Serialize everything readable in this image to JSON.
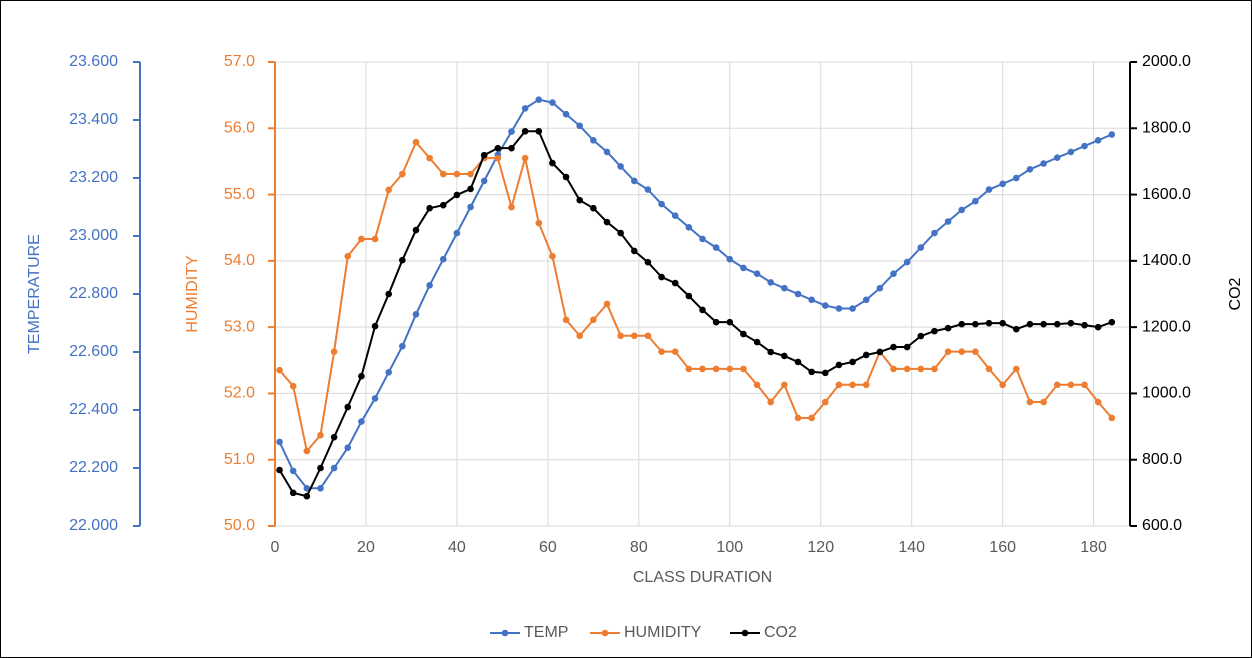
{
  "chart_data": {
    "type": "line",
    "x_label": "CLASS DURATION",
    "xlim": [
      0,
      188
    ],
    "xticks": [
      0,
      20,
      40,
      60,
      80,
      100,
      120,
      140,
      160,
      180
    ],
    "x": [
      1,
      4,
      7,
      10,
      13,
      16,
      19,
      22,
      25,
      28,
      31,
      34,
      37,
      40,
      43,
      46,
      49,
      52,
      55,
      58,
      61,
      64,
      67,
      70,
      73,
      76,
      79,
      82,
      85,
      88,
      91,
      94,
      97,
      100,
      103,
      106,
      109,
      112,
      115,
      118,
      121,
      124,
      127,
      130,
      133,
      136,
      139,
      142,
      145,
      148,
      151,
      154,
      157,
      160,
      163,
      166,
      169,
      172,
      175,
      178,
      181,
      184
    ],
    "grid": true,
    "ylabel": "HUMIDITY",
    "ylim": [
      50,
      57
    ],
    "yticks": [
      {
        "value": 50,
        "label": "50.0"
      },
      {
        "value": 51,
        "label": "51.0"
      },
      {
        "value": 52,
        "label": "52.0"
      },
      {
        "value": 53,
        "label": "53.0"
      },
      {
        "value": 54,
        "label": "54.0"
      },
      {
        "value": 55,
        "label": "55.0"
      },
      {
        "value": 56,
        "label": "56.0"
      },
      {
        "value": 57,
        "label": "57.0"
      }
    ],
    "y2label": "CO2",
    "y2lim": [
      600,
      2000
    ],
    "y2ticks": [
      {
        "value": 600,
        "label": "600.0"
      },
      {
        "value": 800,
        "label": "800.0"
      },
      {
        "value": 1000,
        "label": "1000.0"
      },
      {
        "value": 1200,
        "label": "1200.0"
      },
      {
        "value": 1400,
        "label": "1400.0"
      },
      {
        "value": 1600,
        "label": "1600.0"
      },
      {
        "value": 1800,
        "label": "1800.0"
      },
      {
        "value": 2000,
        "label": "2000.0"
      }
    ],
    "y3label": "TEMPERATURE",
    "y3lim": [
      22.0,
      23.6
    ],
    "y3ticks": [
      {
        "value": 22.0,
        "label": "22.000"
      },
      {
        "value": 22.2,
        "label": "22.200"
      },
      {
        "value": 22.4,
        "label": "22.400"
      },
      {
        "value": 22.6,
        "label": "22.600"
      },
      {
        "value": 22.8,
        "label": "22.800"
      },
      {
        "value": 23.0,
        "label": "23.000"
      },
      {
        "value": 23.2,
        "label": "23.200"
      },
      {
        "value": 23.4,
        "label": "23.400"
      },
      {
        "value": 23.6,
        "label": "23.600"
      }
    ],
    "legend": "bottom",
    "series": [
      {
        "name": "TEMP",
        "color": "#4472c4",
        "axis": "y3",
        "values": [
          22.29,
          22.19,
          22.13,
          22.13,
          22.2,
          22.27,
          22.36,
          22.44,
          22.53,
          22.62,
          22.73,
          22.83,
          22.92,
          23.01,
          23.1,
          23.19,
          23.28,
          23.36,
          23.44,
          23.47,
          23.46,
          23.42,
          23.38,
          23.33,
          23.29,
          23.24,
          23.19,
          23.16,
          23.11,
          23.07,
          23.03,
          22.99,
          22.96,
          22.92,
          22.89,
          22.87,
          22.84,
          22.82,
          22.8,
          22.78,
          22.76,
          22.75,
          22.75,
          22.78,
          22.82,
          22.87,
          22.91,
          22.96,
          23.01,
          23.05,
          23.09,
          23.12,
          23.16,
          23.18,
          23.2,
          23.23,
          23.25,
          23.27,
          23.29,
          23.31,
          23.33,
          23.35
        ]
      },
      {
        "name": "HUMIDITY",
        "color": "#ed7d31",
        "axis": "y",
        "values": [
          52.35,
          52.11,
          51.13,
          51.37,
          52.63,
          54.07,
          54.33,
          54.33,
          55.07,
          55.31,
          55.79,
          55.55,
          55.31,
          55.31,
          55.31,
          55.55,
          55.55,
          54.81,
          55.55,
          54.57,
          54.07,
          53.11,
          52.87,
          53.11,
          53.35,
          52.87,
          52.87,
          52.87,
          52.63,
          52.63,
          52.37,
          52.37,
          52.37,
          52.37,
          52.37,
          52.13,
          51.87,
          52.13,
          51.63,
          51.63,
          51.87,
          52.13,
          52.13,
          52.13,
          52.63,
          52.37,
          52.37,
          52.37,
          52.37,
          52.63,
          52.63,
          52.63,
          52.37,
          52.13,
          52.37,
          51.87,
          51.87,
          52.13,
          52.13,
          52.13,
          51.87,
          51.63
        ]
      },
      {
        "name": "CO2",
        "color": "#000000",
        "axis": "y2",
        "values": [
          769,
          700,
          690,
          775,
          868,
          959,
          1052,
          1203,
          1300,
          1402,
          1493,
          1559,
          1568,
          1599,
          1617,
          1719,
          1740,
          1740,
          1791,
          1791,
          1695,
          1653,
          1583,
          1559,
          1517,
          1484,
          1430,
          1396,
          1351,
          1333,
          1294,
          1252,
          1215,
          1215,
          1179,
          1155,
          1125,
          1113,
          1095,
          1065,
          1062,
          1086,
          1095,
          1116,
          1125,
          1140,
          1140,
          1173,
          1188,
          1197,
          1209,
          1209,
          1212,
          1212,
          1194,
          1209,
          1209,
          1209,
          1212,
          1206,
          1200,
          1215
        ]
      }
    ]
  }
}
